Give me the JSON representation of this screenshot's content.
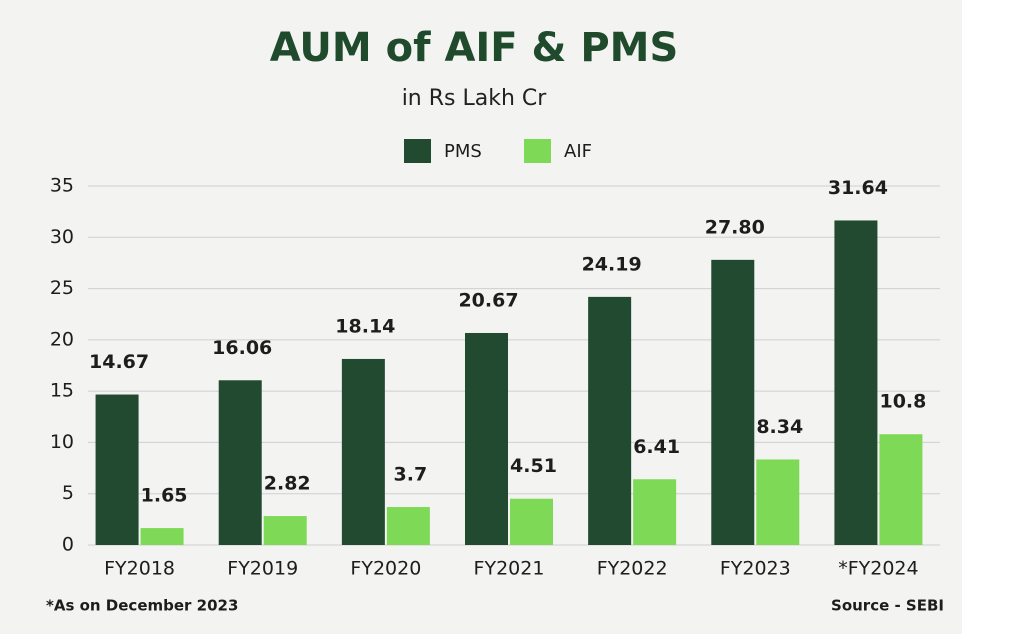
{
  "chart_data": {
    "type": "bar",
    "title": "AUM of AIF & PMS",
    "subtitle": "in Rs Lakh Cr",
    "categories": [
      "FY2018",
      "FY2019",
      "FY2020",
      "FY2021",
      "FY2022",
      "FY2023",
      "*FY2024"
    ],
    "series": [
      {
        "name": "PMS",
        "color": "#224a31",
        "values": [
          14.67,
          16.06,
          18.14,
          20.67,
          24.19,
          27.8,
          31.64
        ],
        "value_labels": [
          "14.67",
          "16.06",
          "18.14",
          "20.67",
          "24.19",
          "27.80",
          "31.64"
        ]
      },
      {
        "name": "AIF",
        "color": "#7ed957",
        "values": [
          1.65,
          2.82,
          3.7,
          4.51,
          6.41,
          8.34,
          10.8
        ],
        "value_labels": [
          "1.65",
          "2.82",
          "3.7",
          "4.51",
          "6.41",
          "8.34",
          "10.8"
        ]
      }
    ],
    "ylim": [
      0,
      35
    ],
    "yticks": [
      0,
      5,
      10,
      15,
      20,
      25,
      30,
      35
    ],
    "grid": true,
    "legend": "top",
    "footnote": "*As on December 2023",
    "source": "Source - SEBI"
  }
}
